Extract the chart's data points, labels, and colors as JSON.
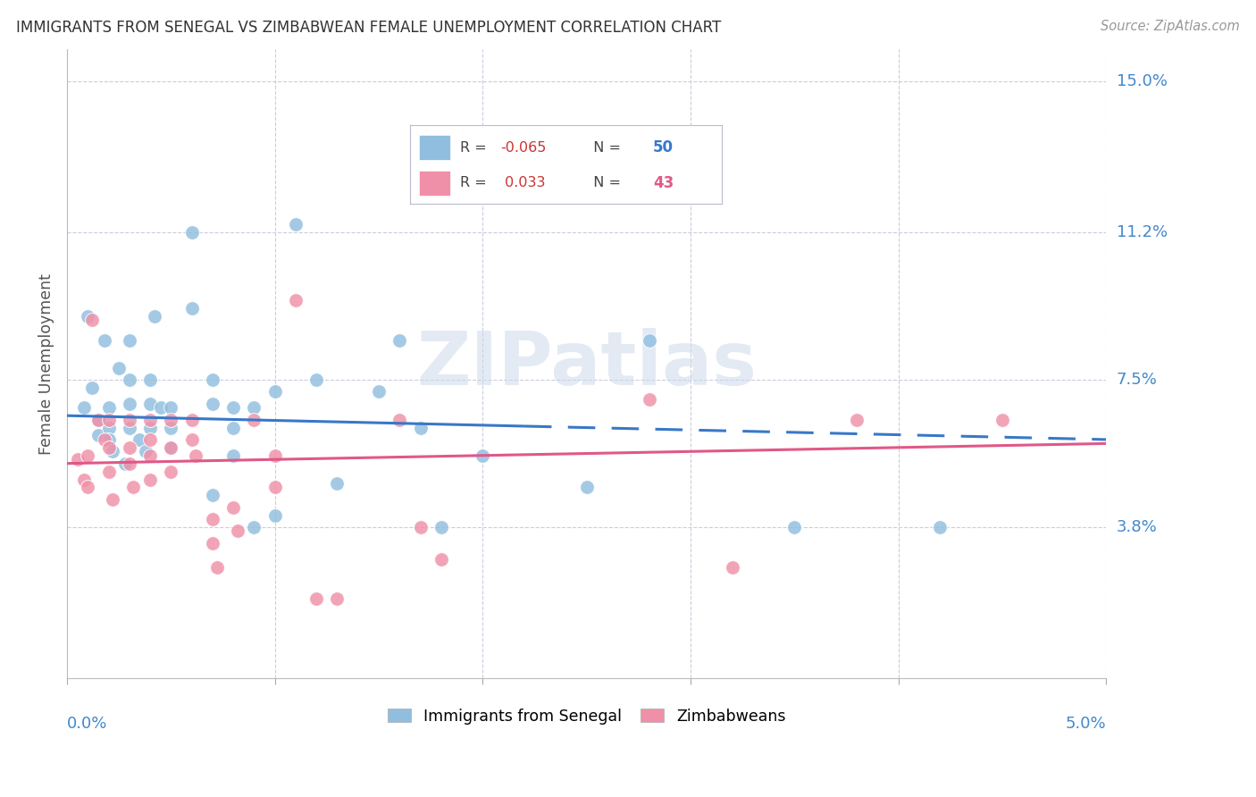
{
  "title": "IMMIGRANTS FROM SENEGAL VS ZIMBABWEAN FEMALE UNEMPLOYMENT CORRELATION CHART",
  "source": "Source: ZipAtlas.com",
  "ylabel": "Female Unemployment",
  "xlim": [
    0.0,
    0.05
  ],
  "ylim": [
    0.0,
    0.158
  ],
  "ytick_vals": [
    0.038,
    0.075,
    0.112,
    0.15
  ],
  "ytick_labels": [
    "3.8%",
    "7.5%",
    "11.2%",
    "15.0%"
  ],
  "blue_color": "#90bede",
  "pink_color": "#f090a8",
  "blue_line_color": "#3878c8",
  "pink_line_color": "#e05888",
  "watermark": "ZIPatlas",
  "blue_R_str": "-0.065",
  "blue_N_str": "50",
  "pink_R_str": "0.033",
  "pink_N_str": "43",
  "legend_label_blue": "Immigrants from Senegal",
  "legend_label_pink": "Zimbabweans",
  "blue_x": [
    0.0008,
    0.001,
    0.0012,
    0.0015,
    0.0015,
    0.0018,
    0.002,
    0.002,
    0.002,
    0.0022,
    0.0025,
    0.0028,
    0.003,
    0.003,
    0.003,
    0.003,
    0.0035,
    0.0038,
    0.004,
    0.004,
    0.004,
    0.0042,
    0.0045,
    0.005,
    0.005,
    0.005,
    0.006,
    0.006,
    0.007,
    0.007,
    0.007,
    0.008,
    0.008,
    0.008,
    0.009,
    0.009,
    0.01,
    0.01,
    0.011,
    0.012,
    0.013,
    0.015,
    0.016,
    0.017,
    0.018,
    0.02,
    0.025,
    0.028,
    0.035,
    0.042
  ],
  "blue_y": [
    0.068,
    0.091,
    0.073,
    0.065,
    0.061,
    0.085,
    0.068,
    0.063,
    0.06,
    0.057,
    0.078,
    0.054,
    0.085,
    0.075,
    0.069,
    0.063,
    0.06,
    0.057,
    0.075,
    0.069,
    0.063,
    0.091,
    0.068,
    0.068,
    0.063,
    0.058,
    0.112,
    0.093,
    0.075,
    0.069,
    0.046,
    0.068,
    0.063,
    0.056,
    0.068,
    0.038,
    0.072,
    0.041,
    0.114,
    0.075,
    0.049,
    0.072,
    0.085,
    0.063,
    0.038,
    0.056,
    0.048,
    0.085,
    0.038,
    0.038
  ],
  "pink_x": [
    0.0005,
    0.0008,
    0.001,
    0.001,
    0.0012,
    0.0015,
    0.0018,
    0.002,
    0.002,
    0.002,
    0.0022,
    0.003,
    0.003,
    0.003,
    0.0032,
    0.004,
    0.004,
    0.004,
    0.004,
    0.005,
    0.005,
    0.005,
    0.006,
    0.006,
    0.0062,
    0.007,
    0.007,
    0.0072,
    0.008,
    0.0082,
    0.009,
    0.01,
    0.01,
    0.011,
    0.012,
    0.013,
    0.016,
    0.017,
    0.018,
    0.028,
    0.032,
    0.038,
    0.045
  ],
  "pink_y": [
    0.055,
    0.05,
    0.056,
    0.048,
    0.09,
    0.065,
    0.06,
    0.065,
    0.058,
    0.052,
    0.045,
    0.065,
    0.058,
    0.054,
    0.048,
    0.065,
    0.06,
    0.056,
    0.05,
    0.065,
    0.058,
    0.052,
    0.065,
    0.06,
    0.056,
    0.04,
    0.034,
    0.028,
    0.043,
    0.037,
    0.065,
    0.056,
    0.048,
    0.095,
    0.02,
    0.02,
    0.065,
    0.038,
    0.03,
    0.07,
    0.028,
    0.065,
    0.065
  ]
}
